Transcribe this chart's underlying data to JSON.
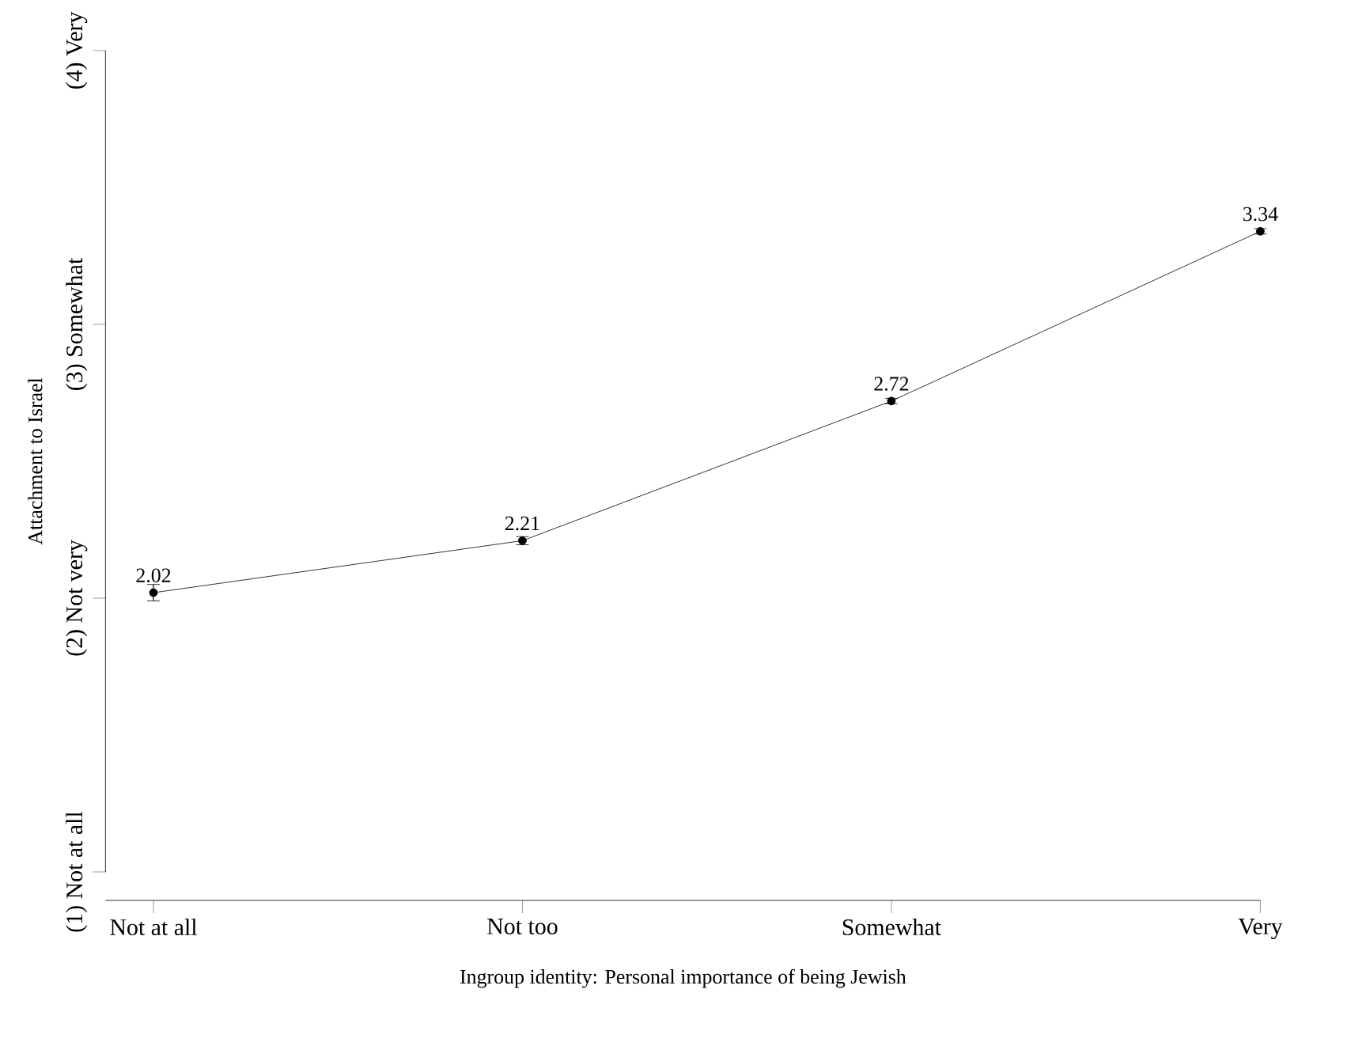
{
  "chart_data": {
    "type": "line",
    "xlabel": "Ingroup identity: Personal importance of being Jewish",
    "ylabel": "Attachment to Israel",
    "categories": [
      "Not at all",
      "Not too",
      "Somewhat",
      "Very"
    ],
    "values": [
      2.02,
      2.21,
      2.72,
      3.34
    ],
    "errors": [
      0.03,
      0.015,
      0.01,
      0.01
    ],
    "color": "#000000",
    "marker": "circle",
    "line_style": "solid",
    "data_labels": true,
    "ylim": [
      1,
      4
    ],
    "yticks": [
      {
        "value": 1,
        "label": "(1) Not at all"
      },
      {
        "value": 2,
        "label": "(2) Not very"
      },
      {
        "value": 3,
        "label": "(3) Somewhat"
      },
      {
        "value": 4,
        "label": "(4) Very"
      }
    ]
  }
}
